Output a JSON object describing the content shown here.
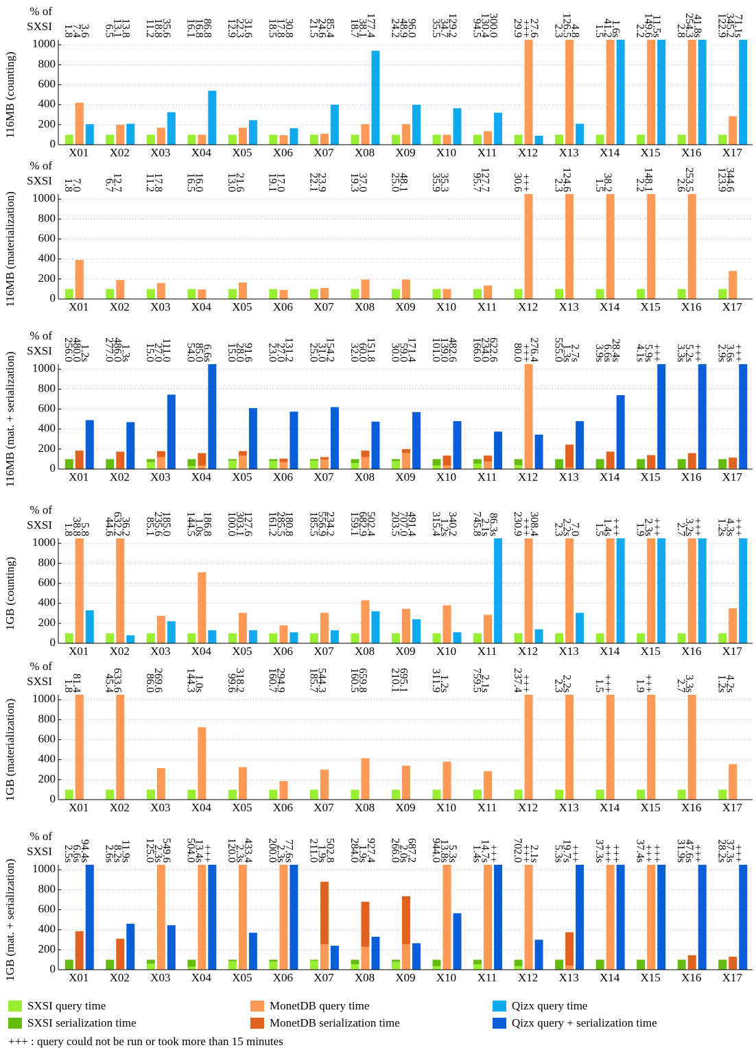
{
  "chart_data": [
    {
      "type": "bar",
      "ylabel": "116MB (counting)",
      "unit_label": [
        "% of",
        "SXSI"
      ],
      "categories": [
        "X01",
        "X02",
        "X03",
        "X04",
        "X05",
        "X06",
        "X07",
        "X08",
        "X09",
        "X10",
        "X11",
        "X12",
        "X13",
        "X14",
        "X15",
        "X16",
        "X17"
      ],
      "ylim": [
        0,
        1050
      ],
      "yticks": [
        0,
        200,
        400,
        600,
        800,
        1000
      ],
      "grid": true,
      "annotations": [
        [
          "1.8",
          "7.4",
          "3.6"
        ],
        [
          "6.5",
          "13.1",
          "13.8"
        ],
        [
          "11.2",
          "18.8",
          "35.6"
        ],
        [
          "16.1",
          "16.8",
          "86.8"
        ],
        [
          "12.9",
          "22.3",
          "31.6"
        ],
        [
          "18.5",
          "17.8",
          "30.8"
        ],
        [
          "21.5",
          "24.6",
          "85.4"
        ],
        [
          "18.7",
          "38.1",
          "177.4"
        ],
        [
          "24.2",
          "48.9",
          "96.0"
        ],
        [
          "35.5",
          "34.7",
          "129.2"
        ],
        [
          "94.5",
          "130.4",
          "300.0"
        ],
        [
          "29.9",
          "+++",
          "27.6"
        ],
        [
          "2.3",
          "126.5",
          "4.8"
        ],
        [
          "1.5",
          "41.2",
          "1.6s"
        ],
        [
          "2.2",
          "149.6",
          "11.5s"
        ],
        [
          "2.8",
          "254.3",
          "41.8s"
        ],
        [
          "122.9",
          "345.2",
          "71.1s"
        ]
      ],
      "series": [
        {
          "color": "#99ee33",
          "values": [
            100,
            100,
            100,
            100,
            100,
            100,
            100,
            100,
            100,
            100,
            100,
            100,
            100,
            100,
            100,
            100,
            100
          ]
        },
        {
          "color": "#ff9955",
          "values": [
            420,
            200,
            170,
            100,
            170,
            95,
            110,
            205,
            205,
            100,
            135,
            1050,
            1050,
            1050,
            1050,
            1050,
            285
          ]
        },
        {
          "color": "#11aaee",
          "values": [
            205,
            210,
            325,
            540,
            245,
            165,
            400,
            940,
            400,
            365,
            320,
            90,
            210,
            1050,
            1050,
            1050,
            1050
          ]
        }
      ]
    },
    {
      "type": "bar",
      "ylabel": "116MB (materialization)",
      "unit_label": [
        "% of",
        "SXSI"
      ],
      "categories": [
        "X01",
        "X02",
        "X03",
        "X04",
        "X05",
        "X06",
        "X07",
        "X08",
        "X09",
        "X10",
        "X11",
        "X12",
        "X13",
        "X14",
        "X15",
        "X16",
        "X17"
      ],
      "ylim": [
        0,
        1050
      ],
      "yticks": [
        0,
        200,
        400,
        600,
        800,
        1000
      ],
      "grid": true,
      "annotations": [
        [
          "1.8",
          "7.0"
        ],
        [
          "6.7",
          "12.7"
        ],
        [
          "11.2",
          "17.8"
        ],
        [
          "16.5",
          "16.0"
        ],
        [
          "13.0",
          "21.6"
        ],
        [
          "19.1",
          "17.0"
        ],
        [
          "22.1",
          "23.9"
        ],
        [
          "19.3",
          "37.0"
        ],
        [
          "25.0",
          "48.1"
        ],
        [
          "35.9",
          "35.3"
        ],
        [
          "95.7",
          "127.7"
        ],
        [
          "30.6",
          "+++"
        ],
        [
          "2.3",
          "124.6"
        ],
        [
          "1.5",
          "38.2"
        ],
        [
          "2.2",
          "148.1"
        ],
        [
          "2.6",
          "253.5"
        ],
        [
          "123.9",
          "344.6"
        ]
      ],
      "series": [
        {
          "color": "#99ee33",
          "values": [
            100,
            100,
            100,
            100,
            100,
            100,
            100,
            100,
            100,
            100,
            100,
            100,
            100,
            100,
            100,
            100,
            100
          ]
        },
        {
          "color": "#ff9955",
          "values": [
            390,
            190,
            160,
            95,
            165,
            90,
            110,
            195,
            195,
            100,
            135,
            1050,
            1050,
            1050,
            1050,
            1050,
            280
          ]
        }
      ]
    },
    {
      "type": "bar",
      "ylabel": "116MB (mat. + serialization)",
      "unit_label": [
        "% of",
        "SXSI"
      ],
      "categories": [
        "X01",
        "X02",
        "X03",
        "X04",
        "X05",
        "X06",
        "X07",
        "X08",
        "X09",
        "X10",
        "X11",
        "X12",
        "X13",
        "X14",
        "X15",
        "X16",
        "X17"
      ],
      "ylim": [
        0,
        1050
      ],
      "yticks": [
        0,
        200,
        400,
        600,
        800,
        1000
      ],
      "grid": true,
      "annotations": [
        [
          "256.0",
          "480.0",
          "1.2s"
        ],
        [
          "277.0",
          "486.0",
          "1.3s"
        ],
        [
          "15.0",
          "27.0",
          "111.0"
        ],
        [
          "54.0",
          "85.0",
          "6.6s"
        ],
        [
          "15.0",
          "28.0",
          "91.6"
        ],
        [
          "23.0",
          "27.0",
          "131.2"
        ],
        [
          "25.0",
          "31.0",
          "154.2"
        ],
        [
          "32.0",
          "60.0",
          "151.8"
        ],
        [
          "30.0",
          "59.0",
          "171.4"
        ],
        [
          "101.0",
          "139.0",
          "482.6"
        ],
        [
          "166.0",
          "234.0",
          "622.6"
        ],
        [
          "80.0",
          "+++",
          "276.4"
        ],
        [
          "555.0",
          "1.3s",
          "2.7s"
        ],
        [
          "3.9s",
          "6.6s",
          "28.4s"
        ],
        [
          "4.1s",
          "5.9s",
          "+++"
        ],
        [
          "3.3s",
          "5.2s",
          "+++"
        ],
        [
          "2.9s",
          "3.6s",
          "+++"
        ]
      ],
      "series": [
        {
          "segments": [
            {
              "color": "#99ee33",
              "values": [
                2,
                3,
                70,
                30,
                85,
                80,
                85,
                60,
                80,
                35,
                55,
                40,
                1,
                1,
                1,
                1,
                5
              ]
            },
            {
              "color": "#66bb11",
              "values": [
                98,
                97,
                30,
                70,
                15,
                20,
                15,
                40,
                20,
                65,
                45,
                60,
                99,
                99,
                99,
                99,
                95
              ]
            }
          ]
        },
        {
          "segments": [
            {
              "color": "#ff9955",
              "values": [
                5,
                5,
                120,
                35,
                135,
                70,
                95,
                120,
                160,
                35,
                75,
                1050,
                15,
                5,
                5,
                5,
                10
              ]
            },
            {
              "color": "#e0621e",
              "values": [
                180,
                170,
                60,
                125,
                45,
                35,
                25,
                65,
                40,
                100,
                60,
                0,
                230,
                170,
                135,
                155,
                105
              ]
            }
          ]
        },
        {
          "color": "#0a5fd8",
          "values": [
            490,
            470,
            745,
            1050,
            610,
            575,
            620,
            475,
            570,
            480,
            375,
            345,
            480,
            740,
            1050,
            1050,
            1050
          ]
        }
      ]
    },
    {
      "type": "bar",
      "ylabel": "1GB (counting)",
      "unit_label": [
        "% of",
        "SXSI"
      ],
      "categories": [
        "X01",
        "X02",
        "X03",
        "X04",
        "X05",
        "X06",
        "X07",
        "X08",
        "X09",
        "X10",
        "X11",
        "X12",
        "X13",
        "X14",
        "X15",
        "X16",
        "X17"
      ],
      "ylim": [
        0,
        1050
      ],
      "yticks": [
        0,
        200,
        400,
        600,
        800,
        1000
      ],
      "grid": true,
      "annotations": [
        [
          "1.8",
          "38.8",
          "5.8"
        ],
        [
          "44.6",
          "632.2",
          "36.2"
        ],
        [
          "85.1",
          "235.6",
          "185.0"
        ],
        [
          "144.5",
          "1.0s",
          "186.8"
        ],
        [
          "100.0",
          "303.1",
          "127.6"
        ],
        [
          "161.2",
          "285.5",
          "180.8"
        ],
        [
          "185.5",
          "556.9",
          "234.2"
        ],
        [
          "159.1",
          "682.9",
          "502.4"
        ],
        [
          "203.5",
          "707.0",
          "491.4"
        ],
        [
          "315.4",
          "1.2s",
          "340.2"
        ],
        [
          "745.8",
          "2.1s",
          "86.3s"
        ],
        [
          "230.9",
          "+++",
          "308.4"
        ],
        [
          "2.3",
          "2.2s",
          "7.0"
        ],
        [
          "1.5",
          "1.4s",
          "+++"
        ],
        [
          "1.9",
          "2.3s",
          "+++"
        ],
        [
          "2.7",
          "3.2s",
          "+++"
        ],
        [
          "1.2s",
          "4.3s",
          "+++"
        ]
      ],
      "series": [
        {
          "color": "#99ee33",
          "values": [
            100,
            100,
            100,
            100,
            100,
            100,
            100,
            100,
            100,
            100,
            100,
            100,
            100,
            100,
            100,
            100,
            100
          ]
        },
        {
          "color": "#ff9955",
          "values": [
            1050,
            1050,
            275,
            710,
            305,
            180,
            305,
            430,
            345,
            380,
            285,
            1050,
            1050,
            1050,
            1050,
            1050,
            350
          ]
        },
        {
          "color": "#11aaee",
          "values": [
            330,
            80,
            220,
            130,
            130,
            110,
            130,
            320,
            240,
            110,
            1050,
            140,
            305,
            1050,
            1050,
            1050,
            1050
          ]
        }
      ]
    },
    {
      "type": "bar",
      "ylabel": "1GB (materialization)",
      "unit_label": [
        "% of",
        "SXSI"
      ],
      "categories": [
        "X01",
        "X02",
        "X03",
        "X04",
        "X05",
        "X06",
        "X07",
        "X08",
        "X09",
        "X10",
        "X11",
        "X12",
        "X13",
        "X14",
        "X15",
        "X16",
        "X17"
      ],
      "ylim": [
        0,
        1050
      ],
      "yticks": [
        0,
        200,
        400,
        600,
        800,
        1000
      ],
      "grid": true,
      "annotations": [
        [
          "1.8",
          "81.4"
        ],
        [
          "45.4",
          "633.6"
        ],
        [
          "86.0",
          "269.6"
        ],
        [
          "144.3",
          "1.0s"
        ],
        [
          "99.6",
          "318.2"
        ],
        [
          "160.7",
          "294.9"
        ],
        [
          "185.7",
          "544.3"
        ],
        [
          "160.5",
          "659.8"
        ],
        [
          "210.1",
          "695.1"
        ],
        [
          "311.9",
          "1.2s"
        ],
        [
          "759.5",
          "2.1s"
        ],
        [
          "237.4",
          "+++"
        ],
        [
          "2.3",
          "2.2s"
        ],
        [
          "1.5",
          "+++"
        ],
        [
          "1.9",
          "+++"
        ],
        [
          "2.7",
          "3.3s"
        ],
        [
          "1.2s",
          "4.2s"
        ]
      ],
      "series": [
        {
          "color": "#99ee33",
          "values": [
            100,
            100,
            100,
            100,
            100,
            100,
            100,
            100,
            100,
            100,
            100,
            100,
            100,
            100,
            100,
            100,
            100
          ]
        },
        {
          "color": "#ff9955",
          "values": [
            1050,
            1050,
            315,
            725,
            325,
            185,
            300,
            415,
            340,
            380,
            285,
            1050,
            1050,
            1050,
            1050,
            1050,
            355
          ]
        }
      ]
    },
    {
      "type": "bar",
      "ylabel": "1GB (mat. + serialization)",
      "unit_label": [
        "% of",
        "SXSI"
      ],
      "categories": [
        "X01",
        "X02",
        "X03",
        "X04",
        "X05",
        "X06",
        "X07",
        "X08",
        "X09",
        "X10",
        "X11",
        "X12",
        "X13",
        "X14",
        "X15",
        "X16",
        "X17"
      ],
      "ylim": [
        0,
        1050
      ],
      "yticks": [
        0,
        200,
        400,
        600,
        800,
        1000
      ],
      "grid": true,
      "annotations": [
        [
          "2.5s",
          "6.6s",
          "94.4s"
        ],
        [
          "2.6s",
          "8.2s",
          "11.9s"
        ],
        [
          "125.0",
          "2.3s",
          "549.6"
        ],
        [
          "504.0",
          "13.4s",
          "+++"
        ],
        [
          "120.0",
          "2.3s",
          "433.4"
        ],
        [
          "200.0",
          "2.3s",
          "77.6s"
        ],
        [
          "211.0",
          "1.9s",
          "502.8"
        ],
        [
          "284.0",
          "1.9s",
          "927.4"
        ],
        [
          "266.0",
          "2.0s",
          "687.2"
        ],
        [
          "944.0",
          "13.8s",
          "5.3s"
        ],
        [
          "1.4s",
          "14.7s",
          "+++"
        ],
        [
          "702.0",
          "+++",
          "2.1s"
        ],
        [
          "5.3s",
          "19.7s",
          "+++"
        ],
        [
          "37.3s",
          "+++",
          "+++"
        ],
        [
          "37.4s",
          "+++",
          "+++"
        ],
        [
          "31.9s",
          "47.6s",
          "+++"
        ],
        [
          "28.2s",
          "37.3s",
          "+++"
        ]
      ],
      "series": [
        {
          "segments": [
            {
              "color": "#99ee33",
              "values": [
                2,
                2,
                60,
                30,
                85,
                80,
                90,
                55,
                80,
                35,
                55,
                35,
                1,
                1,
                1,
                1,
                1
              ]
            },
            {
              "color": "#66bb11",
              "values": [
                98,
                98,
                40,
                70,
                15,
                20,
                10,
                45,
                20,
                65,
                45,
                65,
                99,
                99,
                99,
                99,
                99
              ]
            }
          ]
        },
        {
          "segments": [
            {
              "color": "#ff9955",
              "values": [
                5,
                5,
                1050,
                1050,
                1050,
                1050,
                255,
                230,
                255,
                1050,
                1050,
                1050,
                40,
                1050,
                1050,
                5,
                5
              ]
            },
            {
              "color": "#e0621e",
              "values": [
                380,
                305,
                0,
                0,
                0,
                0,
                625,
                450,
                480,
                0,
                0,
                0,
                335,
                0,
                0,
                140,
                125
              ]
            }
          ]
        },
        {
          "color": "#0a5fd8",
          "values": [
            1050,
            460,
            445,
            1050,
            370,
            1050,
            240,
            330,
            265,
            565,
            1050,
            300,
            1050,
            1050,
            1050,
            1050,
            1050
          ]
        }
      ]
    }
  ],
  "legend": [
    {
      "name": "SXSI query time",
      "color": "#99ee33"
    },
    {
      "name": "SXSI serialization time",
      "color": "#66bb11"
    },
    {
      "name": "MonetDB query time",
      "color": "#ff9955"
    },
    {
      "name": "MonetDB serialization time",
      "color": "#e0621e"
    },
    {
      "name": "Qizx query time",
      "color": "#11aaee"
    },
    {
      "name": "Qizx query + serialization time",
      "color": "#0a5fd8"
    }
  ],
  "footnote": "+++ : query could not be run or took more than 15 minutes"
}
